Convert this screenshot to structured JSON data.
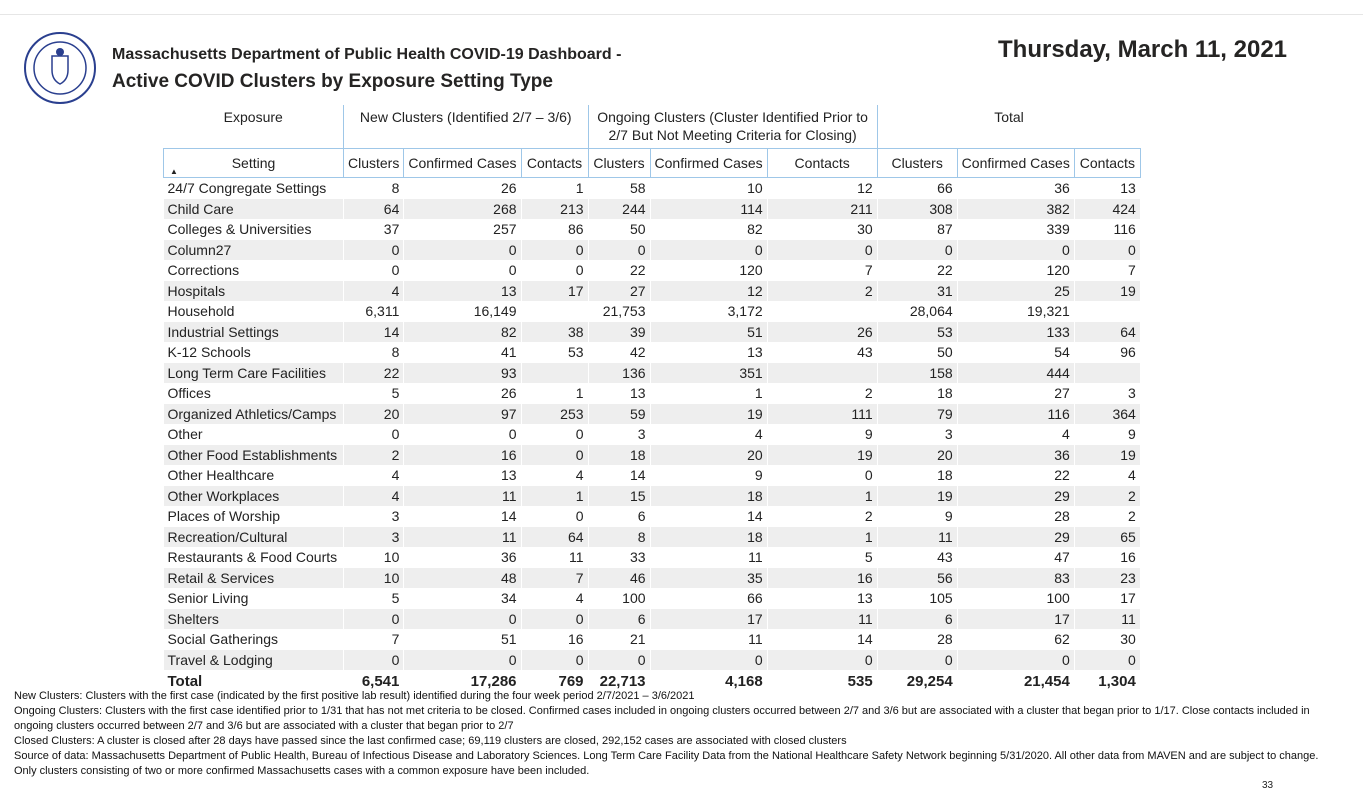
{
  "header": {
    "title": "Massachusetts Department of Public Health COVID-19 Dashboard -",
    "subtitle": "Active COVID Clusters by Exposure Setting Type",
    "date": "Thursday, March 11, 2021"
  },
  "table": {
    "group_headers": [
      "Exposure",
      "New Clusters (Identified 2/7 – 3/6)",
      "Ongoing Clusters (Cluster Identified Prior to 2/7 But Not Meeting Criteria for Closing)",
      "Total"
    ],
    "column_headers": [
      "Setting",
      "Clusters",
      "Confirmed Cases",
      "Contacts",
      "Clusters",
      "Confirmed Cases",
      "Contacts",
      "Clusters",
      "Confirmed Cases",
      "Contacts"
    ],
    "rows": [
      [
        "24/7 Congregate Settings",
        "8",
        "26",
        "1",
        "58",
        "10",
        "12",
        "66",
        "36",
        "13"
      ],
      [
        "Child Care",
        "64",
        "268",
        "213",
        "244",
        "114",
        "211",
        "308",
        "382",
        "424"
      ],
      [
        "Colleges & Universities",
        "37",
        "257",
        "86",
        "50",
        "82",
        "30",
        "87",
        "339",
        "116"
      ],
      [
        "Column27",
        "0",
        "0",
        "0",
        "0",
        "0",
        "0",
        "0",
        "0",
        "0"
      ],
      [
        "Corrections",
        "0",
        "0",
        "0",
        "22",
        "120",
        "7",
        "22",
        "120",
        "7"
      ],
      [
        "Hospitals",
        "4",
        "13",
        "17",
        "27",
        "12",
        "2",
        "31",
        "25",
        "19"
      ],
      [
        "Household",
        "6,311",
        "16,149",
        null,
        "21,753",
        "3,172",
        null,
        "28,064",
        "19,321",
        null
      ],
      [
        "Industrial Settings",
        "14",
        "82",
        "38",
        "39",
        "51",
        "26",
        "53",
        "133",
        "64"
      ],
      [
        "K-12 Schools",
        "8",
        "41",
        "53",
        "42",
        "13",
        "43",
        "50",
        "54",
        "96"
      ],
      [
        "Long Term Care Facilities",
        "22",
        "93",
        null,
        "136",
        "351",
        null,
        "158",
        "444",
        null
      ],
      [
        "Offices",
        "5",
        "26",
        "1",
        "13",
        "1",
        "2",
        "18",
        "27",
        "3"
      ],
      [
        "Organized Athletics/Camps",
        "20",
        "97",
        "253",
        "59",
        "19",
        "111",
        "79",
        "116",
        "364"
      ],
      [
        "Other",
        "0",
        "0",
        "0",
        "3",
        "4",
        "9",
        "3",
        "4",
        "9"
      ],
      [
        "Other Food Establishments",
        "2",
        "16",
        "0",
        "18",
        "20",
        "19",
        "20",
        "36",
        "19"
      ],
      [
        "Other Healthcare",
        "4",
        "13",
        "4",
        "14",
        "9",
        "0",
        "18",
        "22",
        "4"
      ],
      [
        "Other Workplaces",
        "4",
        "11",
        "1",
        "15",
        "18",
        "1",
        "19",
        "29",
        "2"
      ],
      [
        "Places of Worship",
        "3",
        "14",
        "0",
        "6",
        "14",
        "2",
        "9",
        "28",
        "2"
      ],
      [
        "Recreation/Cultural",
        "3",
        "11",
        "64",
        "8",
        "18",
        "1",
        "11",
        "29",
        "65"
      ],
      [
        "Restaurants & Food Courts",
        "10",
        "36",
        "11",
        "33",
        "11",
        "5",
        "43",
        "47",
        "16"
      ],
      [
        "Retail & Services",
        "10",
        "48",
        "7",
        "46",
        "35",
        "16",
        "56",
        "83",
        "23"
      ],
      [
        "Senior Living",
        "5",
        "34",
        "4",
        "100",
        "66",
        "13",
        "105",
        "100",
        "17"
      ],
      [
        "Shelters",
        "0",
        "0",
        "0",
        "6",
        "17",
        "11",
        "6",
        "17",
        "11"
      ],
      [
        "Social Gatherings",
        "7",
        "51",
        "16",
        "21",
        "11",
        "14",
        "28",
        "62",
        "30"
      ],
      [
        "Travel & Lodging",
        "0",
        "0",
        "0",
        "0",
        "0",
        "0",
        "0",
        "0",
        "0"
      ]
    ],
    "total": [
      "Total",
      "6,541",
      "17,286",
      "769",
      "22,713",
      "4,168",
      "535",
      "29,254",
      "21,454",
      "1,304"
    ]
  },
  "footnotes": [
    "New Clusters: Clusters with the first case (indicated by the first positive lab result) identified during the four week period 2/7/2021 – 3/6/2021",
    "Ongoing Clusters: Clusters with the first case identified prior to 1/31 that has not met criteria to be closed.  Confirmed cases included in ongoing clusters occurred between 2/7 and 3/6  but are associated with a cluster that began prior to 1/17. Close contacts included in ongoing clusters occurred between 2/7 and 3/6 but are associated with a cluster that began prior to 2/7",
    "Closed Clusters: A cluster is closed after 28 days have passed since the last confirmed case; 69,119 clusters are closed, 292,152 cases are associated with closed clusters",
    "Source of data: Massachusetts Department of Public Health, Bureau of Infectious Disease and Laboratory Sciences. Long Term Care Facility Data from the National Healthcare Safety Network beginning 5/31/2020.  All other data from MAVEN and are subject to change. Only clusters consisting of two or more confirmed Massachusetts cases with a common exposure have been included."
  ],
  "page_number": "33"
}
